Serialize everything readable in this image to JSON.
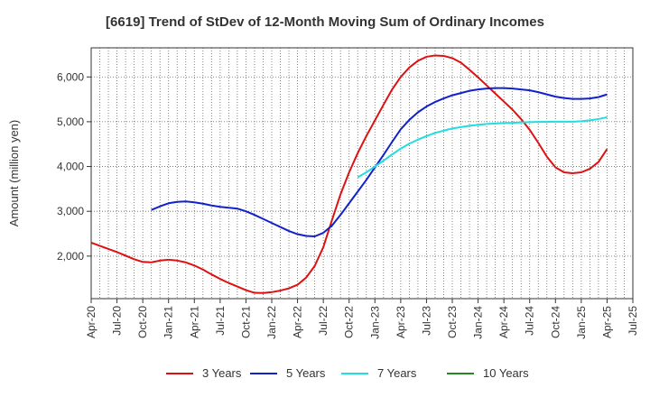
{
  "chart_data": {
    "type": "line",
    "title": "[6619]  Trend of StDev of 12-Month Moving Sum of Ordinary Incomes",
    "ylabel": "Amount (million yen)",
    "xlabel": "",
    "ylim": [
      1050,
      6650
    ],
    "yticks": [
      2000,
      3000,
      4000,
      5000,
      6000
    ],
    "ytick_labels": [
      "2,000",
      "3,000",
      "4,000",
      "5,000",
      "6,000"
    ],
    "xticks": [
      "2020-04",
      "2020-07",
      "2020-10",
      "2021-01",
      "2021-04",
      "2021-07",
      "2021-10",
      "2022-01",
      "2022-04",
      "2022-07",
      "2022-10",
      "2023-01",
      "2023-04",
      "2023-07",
      "2023-10",
      "2024-01",
      "2024-04",
      "2024-07",
      "2024-10",
      "2025-01",
      "2025-04",
      "2025-07"
    ],
    "xtick_labels": [
      "Apr-20",
      "Jul-20",
      "Oct-20",
      "Jan-21",
      "Apr-21",
      "Jul-21",
      "Oct-21",
      "Jan-22",
      "Apr-22",
      "Jul-22",
      "Oct-22",
      "Jan-23",
      "Apr-23",
      "Jul-23",
      "Oct-23",
      "Jan-24",
      "Apr-24",
      "Jul-24",
      "Oct-24",
      "Jan-25",
      "Apr-25",
      "Jul-25"
    ],
    "xlim": [
      "2020-04",
      "2025-07"
    ],
    "grid": true,
    "legend_position": "bottom",
    "series": [
      {
        "name": "3 Years",
        "color": "#dd1111",
        "points": [
          [
            "2020-04",
            2300
          ],
          [
            "2020-05",
            2230
          ],
          [
            "2020-06",
            2160
          ],
          [
            "2020-07",
            2090
          ],
          [
            "2020-08",
            2010
          ],
          [
            "2020-09",
            1930
          ],
          [
            "2020-10",
            1870
          ],
          [
            "2020-11",
            1860
          ],
          [
            "2020-12",
            1900
          ],
          [
            "2021-01",
            1920
          ],
          [
            "2021-02",
            1900
          ],
          [
            "2021-03",
            1860
          ],
          [
            "2021-04",
            1790
          ],
          [
            "2021-05",
            1700
          ],
          [
            "2021-06",
            1590
          ],
          [
            "2021-07",
            1490
          ],
          [
            "2021-08",
            1400
          ],
          [
            "2021-09",
            1320
          ],
          [
            "2021-10",
            1240
          ],
          [
            "2021-11",
            1180
          ],
          [
            "2021-12",
            1175
          ],
          [
            "2022-01",
            1195
          ],
          [
            "2022-02",
            1230
          ],
          [
            "2022-03",
            1280
          ],
          [
            "2022-04",
            1360
          ],
          [
            "2022-05",
            1520
          ],
          [
            "2022-06",
            1780
          ],
          [
            "2022-07",
            2200
          ],
          [
            "2022-08",
            2800
          ],
          [
            "2022-09",
            3380
          ],
          [
            "2022-10",
            3870
          ],
          [
            "2022-11",
            4300
          ],
          [
            "2022-12",
            4680
          ],
          [
            "2023-01",
            5030
          ],
          [
            "2023-02",
            5380
          ],
          [
            "2023-03",
            5720
          ],
          [
            "2023-04",
            6000
          ],
          [
            "2023-05",
            6210
          ],
          [
            "2023-06",
            6360
          ],
          [
            "2023-07",
            6450
          ],
          [
            "2023-08",
            6480
          ],
          [
            "2023-09",
            6470
          ],
          [
            "2023-10",
            6420
          ],
          [
            "2023-11",
            6320
          ],
          [
            "2023-12",
            6160
          ],
          [
            "2024-01",
            5990
          ],
          [
            "2024-02",
            5810
          ],
          [
            "2024-03",
            5630
          ],
          [
            "2024-04",
            5450
          ],
          [
            "2024-05",
            5270
          ],
          [
            "2024-06",
            5060
          ],
          [
            "2024-07",
            4820
          ],
          [
            "2024-08",
            4530
          ],
          [
            "2024-09",
            4220
          ],
          [
            "2024-10",
            3980
          ],
          [
            "2024-11",
            3870
          ],
          [
            "2024-12",
            3850
          ],
          [
            "2025-01",
            3870
          ],
          [
            "2025-02",
            3950
          ],
          [
            "2025-03",
            4100
          ],
          [
            "2025-04",
            4390
          ]
        ]
      },
      {
        "name": "5 Years",
        "color": "#1122cc",
        "points": [
          [
            "2020-11",
            3030
          ],
          [
            "2020-12",
            3110
          ],
          [
            "2021-01",
            3180
          ],
          [
            "2021-02",
            3210
          ],
          [
            "2021-03",
            3220
          ],
          [
            "2021-04",
            3200
          ],
          [
            "2021-05",
            3170
          ],
          [
            "2021-06",
            3130
          ],
          [
            "2021-07",
            3100
          ],
          [
            "2021-08",
            3080
          ],
          [
            "2021-09",
            3060
          ],
          [
            "2021-10",
            3000
          ],
          [
            "2021-11",
            2920
          ],
          [
            "2021-12",
            2830
          ],
          [
            "2022-01",
            2740
          ],
          [
            "2022-02",
            2650
          ],
          [
            "2022-03",
            2560
          ],
          [
            "2022-04",
            2490
          ],
          [
            "2022-05",
            2450
          ],
          [
            "2022-06",
            2440
          ],
          [
            "2022-07",
            2520
          ],
          [
            "2022-08",
            2680
          ],
          [
            "2022-09",
            2920
          ],
          [
            "2022-10",
            3180
          ],
          [
            "2022-11",
            3440
          ],
          [
            "2022-12",
            3700
          ],
          [
            "2023-01",
            3980
          ],
          [
            "2023-02",
            4260
          ],
          [
            "2023-03",
            4550
          ],
          [
            "2023-04",
            4830
          ],
          [
            "2023-05",
            5040
          ],
          [
            "2023-06",
            5210
          ],
          [
            "2023-07",
            5340
          ],
          [
            "2023-08",
            5440
          ],
          [
            "2023-09",
            5520
          ],
          [
            "2023-10",
            5590
          ],
          [
            "2023-11",
            5640
          ],
          [
            "2023-12",
            5690
          ],
          [
            "2024-01",
            5720
          ],
          [
            "2024-02",
            5740
          ],
          [
            "2024-03",
            5750
          ],
          [
            "2024-04",
            5750
          ],
          [
            "2024-05",
            5740
          ],
          [
            "2024-06",
            5720
          ],
          [
            "2024-07",
            5700
          ],
          [
            "2024-08",
            5660
          ],
          [
            "2024-09",
            5610
          ],
          [
            "2024-10",
            5560
          ],
          [
            "2024-11",
            5530
          ],
          [
            "2024-12",
            5510
          ],
          [
            "2025-01",
            5510
          ],
          [
            "2025-02",
            5520
          ],
          [
            "2025-03",
            5550
          ],
          [
            "2025-04",
            5610
          ]
        ]
      },
      {
        "name": "7 Years",
        "color": "#22dddd",
        "points": [
          [
            "2022-11",
            3760
          ],
          [
            "2022-12",
            3870
          ],
          [
            "2023-01",
            4000
          ],
          [
            "2023-02",
            4130
          ],
          [
            "2023-03",
            4270
          ],
          [
            "2023-04",
            4400
          ],
          [
            "2023-05",
            4510
          ],
          [
            "2023-06",
            4600
          ],
          [
            "2023-07",
            4680
          ],
          [
            "2023-08",
            4750
          ],
          [
            "2023-09",
            4800
          ],
          [
            "2023-10",
            4850
          ],
          [
            "2023-11",
            4880
          ],
          [
            "2023-12",
            4910
          ],
          [
            "2024-01",
            4930
          ],
          [
            "2024-02",
            4950
          ],
          [
            "2024-03",
            4960
          ],
          [
            "2024-04",
            4970
          ],
          [
            "2024-05",
            4975
          ],
          [
            "2024-06",
            4985
          ],
          [
            "2024-07",
            4990
          ],
          [
            "2024-08",
            4995
          ],
          [
            "2024-09",
            4998
          ],
          [
            "2024-10",
            5000
          ],
          [
            "2024-11",
            5000
          ],
          [
            "2024-12",
            5000
          ],
          [
            "2025-01",
            5010
          ],
          [
            "2025-02",
            5030
          ],
          [
            "2025-03",
            5060
          ],
          [
            "2025-04",
            5100
          ]
        ]
      },
      {
        "name": "10 Years",
        "color": "#228822",
        "points": []
      }
    ]
  }
}
